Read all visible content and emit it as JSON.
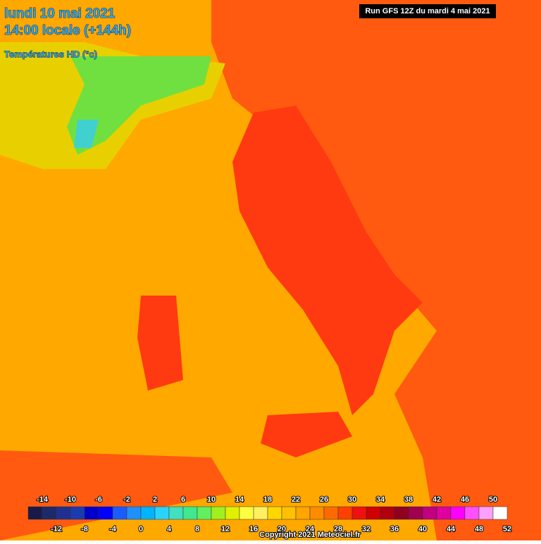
{
  "header": {
    "title_line1": "lundi 10 mai 2021",
    "title_line2": "14:00 locale (+144h)",
    "variable": "Températures HD (°c)",
    "run": "Run GFS 12Z du mardi 4 mai 2021"
  },
  "legend": {
    "colors": [
      "#1a1a4a",
      "#1c2a6c",
      "#203090",
      "#1a3cb0",
      "#0000cc",
      "#0000ff",
      "#1a5cff",
      "#1e90ff",
      "#00b4ff",
      "#28d4ff",
      "#40e0c0",
      "#40e890",
      "#60f060",
      "#a0f020",
      "#e0f000",
      "#ffff40",
      "#fff060",
      "#ffd700",
      "#ffc000",
      "#ffa500",
      "#ff8c00",
      "#ff6a00",
      "#ff4000",
      "#f01010",
      "#d00000",
      "#b00010",
      "#900020",
      "#a00050",
      "#c00080",
      "#e000a0",
      "#ff00ff",
      "#ff50ff",
      "#ffa0ff",
      "#ffffff"
    ],
    "top_labels": [
      -14,
      -10,
      -6,
      -2,
      2,
      6,
      10,
      14,
      18,
      22,
      26,
      30,
      34,
      38,
      42,
      46,
      50
    ],
    "bottom_labels": [
      -12,
      -8,
      -4,
      0,
      4,
      8,
      12,
      16,
      20,
      24,
      28,
      32,
      36,
      40,
      44,
      48,
      52
    ]
  },
  "footer": {
    "copyright": "Copyright 2021 Meteociel.fr"
  }
}
